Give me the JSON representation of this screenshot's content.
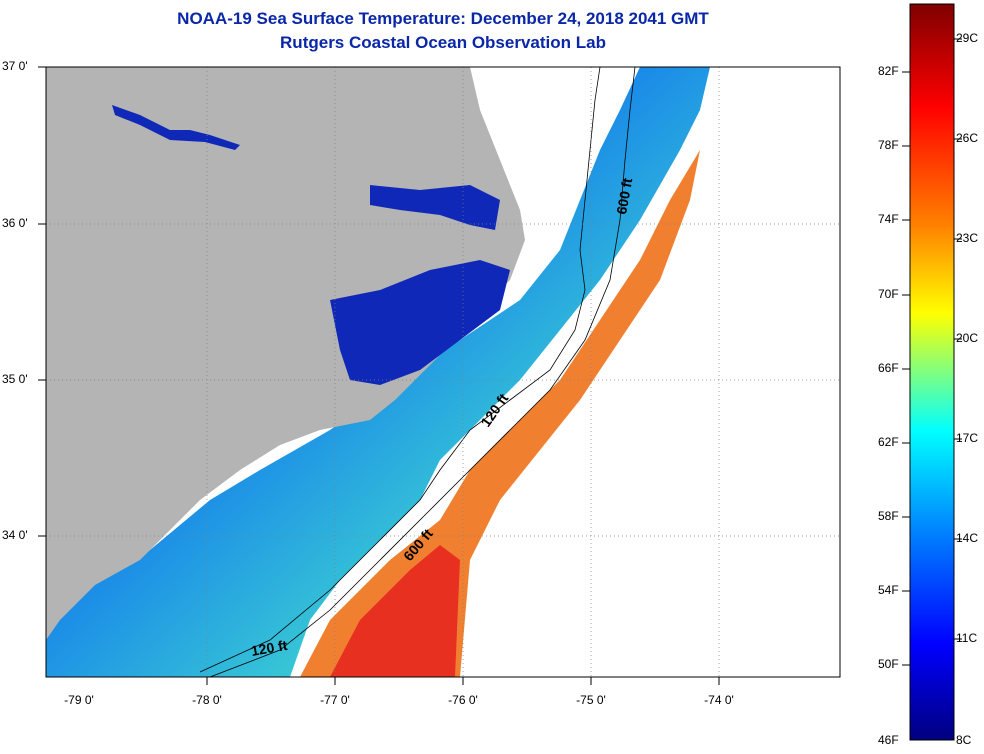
{
  "header": {
    "title": "NOAA-19 Sea Surface Temperature:  December 24, 2018 2041 GMT",
    "subtitle": "Rutgers Coastal Ocean Observation Lab"
  },
  "map": {
    "lat_labels": [
      "37 0'",
      "36 0'",
      "35 0'",
      "34 0'"
    ],
    "lon_labels": [
      "-79 0'",
      "-78 0'",
      "-77 0'",
      "-76 0'",
      "-75 0'",
      "-74 0'"
    ],
    "contour_labels": [
      "600 ft",
      "120 ft",
      "600 ft",
      "120 ft"
    ],
    "colors": {
      "land": "#b4b4b4",
      "no_data": "#ffffff"
    }
  },
  "colorbar": {
    "f_labels": [
      "82F",
      "78F",
      "74F",
      "70F",
      "66F",
      "62F",
      "58F",
      "54F",
      "50F",
      "46F"
    ],
    "c_labels": [
      "29C",
      "26C",
      "23C",
      "20C",
      "17C",
      "14C",
      "11C",
      "8C"
    ],
    "gradient": [
      "#7f0000",
      "#ff0000",
      "#ff8000",
      "#ffff00",
      "#00ffff",
      "#0080ff",
      "#0000ff",
      "#00007f"
    ]
  }
}
